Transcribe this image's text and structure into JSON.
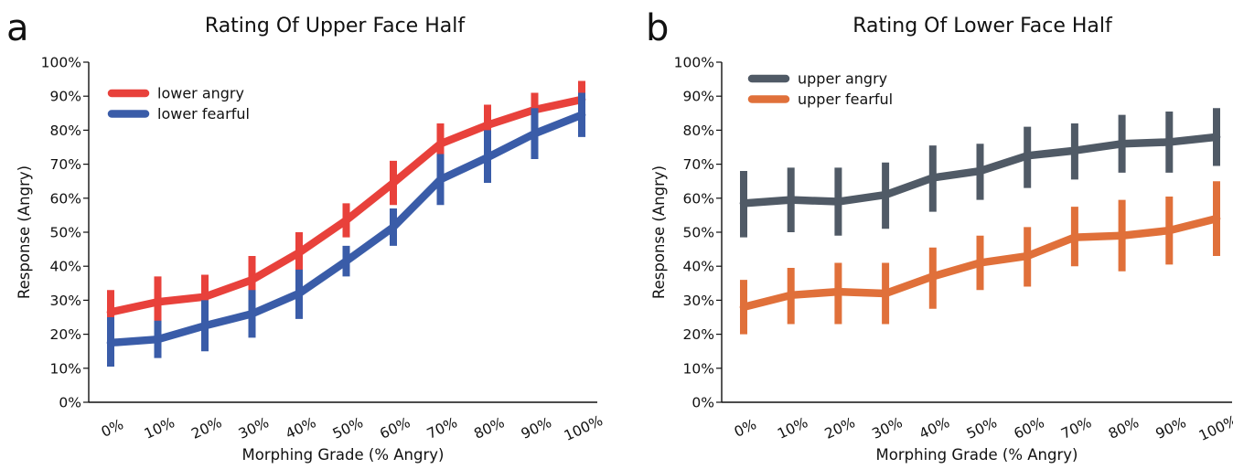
{
  "chart_data": [
    {
      "type": "line",
      "panel_label": "a",
      "title": "Rating Of Upper Face Half",
      "xlabel": "Morphing Grade (% Angry)",
      "ylabel": "Response (Angry)",
      "categories": [
        "0%",
        "10%",
        "20%",
        "30%",
        "40%",
        "50%",
        "60%",
        "70%",
        "80%",
        "90%",
        "100%"
      ],
      "y_ticks": [
        "0%",
        "10%",
        "20%",
        "30%",
        "40%",
        "50%",
        "60%",
        "70%",
        "80%",
        "90%",
        "100%"
      ],
      "ylim": [
        0,
        100
      ],
      "legend_position": "top-left",
      "series": [
        {
          "name": "lower angry",
          "color": "#e8413b",
          "values": [
            26.5,
            29.5,
            31,
            36,
            44,
            53.5,
            64.5,
            76,
            81.5,
            86,
            89
          ],
          "err_low": [
            20,
            21.5,
            24,
            29.5,
            37.5,
            48.5,
            58,
            70,
            75.5,
            80.5,
            83
          ],
          "err_high": [
            33,
            37,
            37.5,
            43,
            50,
            58.5,
            71,
            82,
            87.5,
            91,
            94.5
          ]
        },
        {
          "name": "lower fearful",
          "color": "#3a5ca8",
          "values": [
            17.5,
            18.5,
            22.5,
            26,
            32,
            41.5,
            51.5,
            65.5,
            72,
            79,
            84.5
          ],
          "err_low": [
            10.5,
            13,
            15,
            19,
            24.5,
            37,
            46,
            58,
            64.5,
            71.5,
            78
          ],
          "err_high": [
            25,
            24,
            30,
            33,
            39,
            46,
            57,
            73,
            80,
            86.5,
            91
          ]
        }
      ]
    },
    {
      "type": "line",
      "panel_label": "b",
      "title": "Rating Of Lower Face Half",
      "xlabel": "Morphing Grade (% Angry)",
      "ylabel": "Response (Angry)",
      "categories": [
        "0%",
        "10%",
        "20%",
        "30%",
        "40%",
        "50%",
        "60%",
        "70%",
        "80%",
        "90%",
        "100%"
      ],
      "y_ticks": [
        "0%",
        "10%",
        "20%",
        "30%",
        "40%",
        "50%",
        "60%",
        "70%",
        "80%",
        "90%",
        "100%"
      ],
      "ylim": [
        0,
        100
      ],
      "legend_position": "top-left",
      "series": [
        {
          "name": "upper angry",
          "color": "#505a66",
          "values": [
            58.5,
            59.5,
            59,
            61,
            66,
            68,
            72.5,
            74,
            76,
            76.5,
            78
          ],
          "err_low": [
            48.5,
            50,
            49,
            51,
            56,
            59.5,
            63,
            65.5,
            67.5,
            67.5,
            69.5
          ],
          "err_high": [
            68,
            69,
            69,
            70.5,
            75.5,
            76,
            81,
            82,
            84.5,
            85.5,
            86.5
          ]
        },
        {
          "name": "upper fearful",
          "color": "#e0703a",
          "values": [
            28,
            31.5,
            32.5,
            32,
            37,
            41,
            43,
            48.5,
            49,
            50.5,
            54
          ],
          "err_low": [
            20,
            23,
            23,
            23,
            27.5,
            33,
            34,
            40,
            38.5,
            40.5,
            43
          ],
          "err_high": [
            36,
            39.5,
            41,
            41,
            45.5,
            49,
            51.5,
            57.5,
            59.5,
            60.5,
            65
          ]
        }
      ]
    }
  ]
}
